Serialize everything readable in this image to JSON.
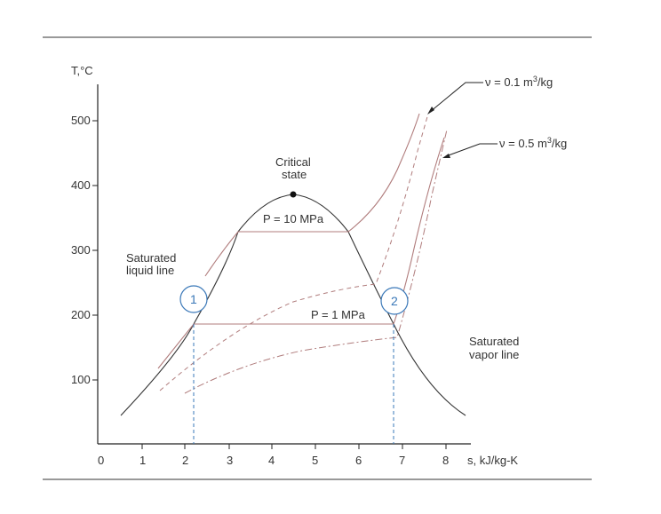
{
  "axes": {
    "y_label": "T,°C",
    "x_label": "s, kJ/kg-K",
    "x_ticks": [
      "0",
      "1",
      "2",
      "3",
      "4",
      "5",
      "6",
      "7",
      "8"
    ],
    "y_ticks": [
      "100",
      "200",
      "300",
      "400",
      "500"
    ]
  },
  "labels": {
    "critical_line1": "Critical",
    "critical_line2": "state",
    "pressure_high": "P = 10 MPa",
    "pressure_low": "P = 1 MPa",
    "sat_liquid_line1": "Saturated",
    "sat_liquid_line2": "liquid line",
    "sat_vapor_line1": "Saturated",
    "sat_vapor_line2": "vapor line",
    "volume_1_prefix": "ν = 0.1 m",
    "volume_1_sup": "3",
    "volume_1_suffix": "/kg",
    "volume_2_prefix": "ν = 0.5 m",
    "volume_2_sup": "3",
    "volume_2_suffix": "/kg"
  },
  "markers": {
    "state_1": "1",
    "state_2": "2"
  },
  "colors": {
    "dome": "#333333",
    "isobar": "#b07c7c",
    "isochore": "#b07c7c",
    "marker": "#3a78b8",
    "frame": "#333333"
  }
}
